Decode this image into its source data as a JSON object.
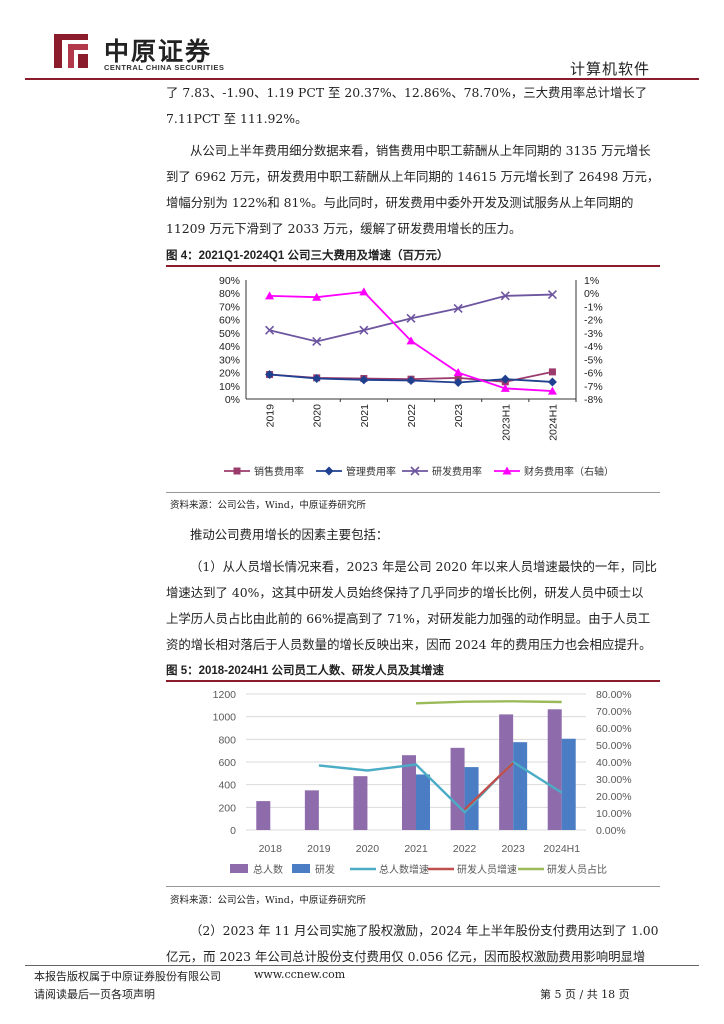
{
  "header": {
    "brand_cn": "中原证券",
    "brand_en": "CENTRAL CHINA SECURITIES",
    "section": "计算机软件"
  },
  "paragraphs": {
    "p0_line1": "了 7.83、-1.90、1.19 PCT 至 20.37%、12.86%、78.70%，三大费用率总计增长了",
    "p0_line2": "7.11PCT 至 111.92%。",
    "p1_line1": "从公司上半年费用细分数据来看，销售费用中职工薪酬从上年同期的 3135 万元增长",
    "p1_line2": "到了 6962 万元，研发费用中职工薪酬从上年同期的 14615 万元增长到了 26498 万元，",
    "p1_line3": "增幅分别为 122%和 81%。与此同时，研发费用中委外开发及测试服务从上年同期的",
    "p1_line4": "11209 万元下滑到了 2033 万元，缓解了研发费用增长的压力。",
    "p2": "推动公司费用增长的因素主要包括：",
    "p3_line1": "（1）从人员增长情况来看，2023 年是公司 2020 年以来人员增速最快的一年，同比",
    "p3_line2": "增速达到了 40%，这其中研发人员始终保持了几乎同步的增长比例，研发人员中硕士以",
    "p3_line3": "上学历人员占比由此前的 66%提高到了 71%，对研发能力加强的动作明显。由于人员工",
    "p3_line4": "资的增长相对落后于人员数量的增长反映出来，因而 2024 年的费用压力也会相应提升。",
    "p4_line1": "（2）2023 年 11 月公司实施了股权激励，2024 年上半年股份支付费用达到了 1.00",
    "p4_line2": "亿元，而 2023 年公司总计股份支付费用仅 0.056 亿元，因而股权激励费用影响明显增"
  },
  "figure4": {
    "title": "图 4：2021Q1-2024Q1 公司三大费用及增速（百万元）",
    "source": "资料来源：公司公告，Wind，中原证券研究所"
  },
  "figure5": {
    "title": "图 5：2018-2024H1 公司员工人数、研发人员及其增速",
    "source": "资料来源：公司公告，Wind，中原证券研究所"
  },
  "footer": {
    "copyright": "本报告版权属于中原证券股份有限公司",
    "website": "www.ccnew.com",
    "disclaimer": "请阅读最后一页各项声明",
    "page": "第 5 页 / 共 18 页"
  },
  "chart_data": [
    {
      "type": "line",
      "categories": [
        "2019",
        "2020",
        "2021",
        "2022",
        "2023",
        "2023H1",
        "2024H1"
      ],
      "y_ticks": [
        "90%",
        "80%",
        "70%",
        "60%",
        "50%",
        "40%",
        "30%",
        "20%",
        "10%",
        "0%"
      ],
      "y2_ticks": [
        "1%",
        "0%",
        "-1%",
        "-2%",
        "-3%",
        "-4%",
        "-5%",
        "-6%",
        "-7%",
        "-8%"
      ],
      "ylim": [
        0,
        90
      ],
      "y2lim": [
        -8,
        1
      ],
      "grid": false,
      "legend": "bottom",
      "series": [
        {
          "name": "销售费用率",
          "axis": "left",
          "color": "#9b3b6c",
          "marker": "square",
          "values": [
            18.5,
            16,
            15.5,
            15,
            16,
            13,
            20.5
          ]
        },
        {
          "name": "管理费用率",
          "axis": "left",
          "color": "#1f3f8f",
          "marker": "diamond",
          "values": [
            18.5,
            15.5,
            14.5,
            14,
            12.5,
            15,
            12.9
          ]
        },
        {
          "name": "研发费用率",
          "axis": "left",
          "color": "#6d55a0",
          "marker": "x",
          "values": [
            52,
            43.5,
            52,
            61,
            68.5,
            78,
            79
          ]
        },
        {
          "name": "财务费用率（右轴）",
          "axis": "right",
          "color": "#ff00ff",
          "marker": "triangle",
          "values": [
            -0.2,
            -0.3,
            0.1,
            -3.6,
            -6.0,
            -7.2,
            -7.4
          ]
        }
      ]
    },
    {
      "type": "bar",
      "categories": [
        "2018",
        "2019",
        "2020",
        "2021",
        "2022",
        "2023",
        "2024H1"
      ],
      "y_ticks": [
        "1200",
        "1000",
        "800",
        "600",
        "400",
        "200",
        "0"
      ],
      "y2_ticks": [
        "80.00%",
        "70.00%",
        "60.00%",
        "50.00%",
        "40.00%",
        "30.00%",
        "20.00%",
        "10.00%",
        "0.00%"
      ],
      "ylim": [
        0,
        1200
      ],
      "y2lim": [
        0,
        80
      ],
      "grid": true,
      "legend": "bottom",
      "series": [
        {
          "name": "总人数",
          "kind": "bar",
          "color": "#8e6bab",
          "values": [
            255,
            350,
            475,
            660,
            725,
            1020,
            1065
          ]
        },
        {
          "name": "研发",
          "kind": "bar",
          "color": "#4a7dc4",
          "values": [
            null,
            null,
            null,
            490,
            555,
            775,
            805
          ]
        },
        {
          "name": "总人数增速",
          "kind": "line",
          "axis": "right",
          "color": "#4bacc6",
          "values": [
            null,
            38,
            35,
            38.5,
            10.5,
            40,
            22
          ]
        },
        {
          "name": "研发人员增速",
          "kind": "line",
          "axis": "right",
          "color": "#c0504d",
          "values": [
            null,
            null,
            null,
            null,
            12,
            39.5,
            null
          ]
        },
        {
          "name": "研发人员占比",
          "kind": "line",
          "axis": "right",
          "color": "#9bbb59",
          "values": [
            null,
            null,
            null,
            74.5,
            75.5,
            75.7,
            75.3
          ]
        }
      ]
    }
  ]
}
